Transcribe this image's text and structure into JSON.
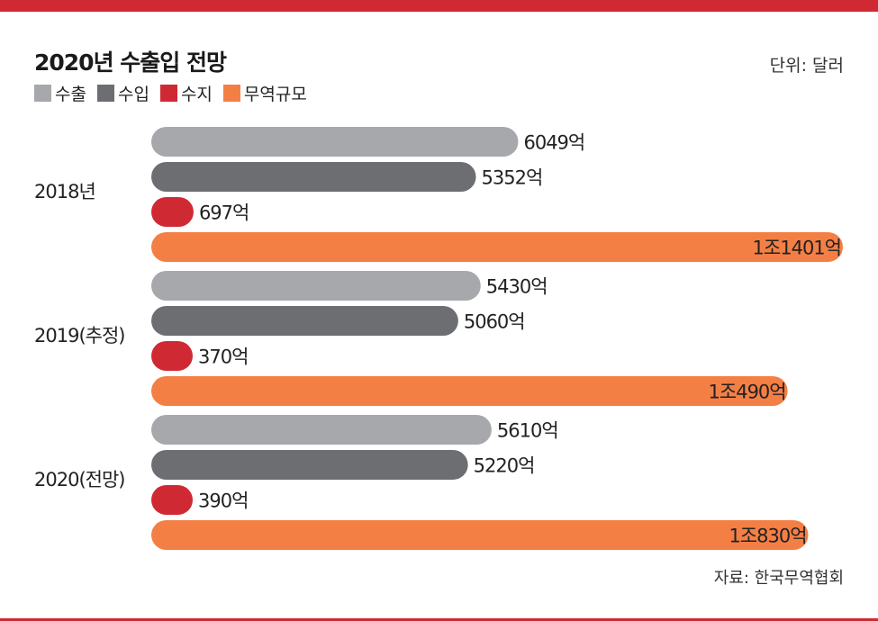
{
  "chart_data": {
    "type": "bar",
    "orientation": "horizontal",
    "title": "2020년 수출입 전망",
    "unit_label": "단위: 달러",
    "source": "자료: 한국무역협회",
    "categories": [
      "2018년",
      "2019(추정)",
      "2020(전망)"
    ],
    "series": [
      {
        "name": "수출",
        "color": "#a7a8ab",
        "values": [
          6049,
          5430,
          5610
        ],
        "labels": [
          "6049억",
          "5430억",
          "5610억"
        ]
      },
      {
        "name": "수입",
        "color": "#6d6e71",
        "values": [
          5352,
          5060,
          5220
        ],
        "labels": [
          "5352억",
          "5060억",
          "5220억"
        ]
      },
      {
        "name": "수지",
        "color": "#cf2a34",
        "values": [
          697,
          370,
          390
        ],
        "labels": [
          "697억",
          "370억",
          "390억"
        ]
      },
      {
        "name": "무역규모",
        "color": "#f47f45",
        "values": [
          11401,
          10490,
          10830
        ],
        "labels": [
          "1조1401억",
          "1조490억",
          "1조830억"
        ]
      }
    ],
    "legend_position": "top-left",
    "grid": false
  }
}
